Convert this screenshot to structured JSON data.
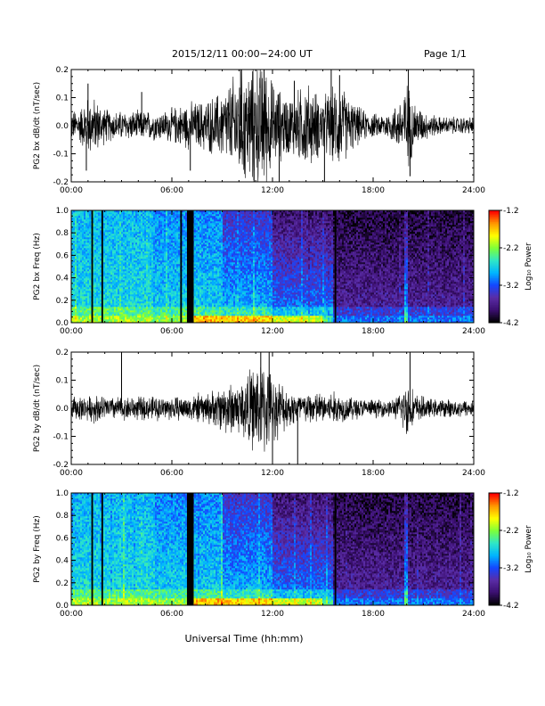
{
  "header": {
    "title": "2015/12/11   00:00−24:00 UT",
    "page": "Page 1/1"
  },
  "footer": {
    "xlabel": "Universal Time (hh:mm)"
  },
  "colors": {
    "background": "#ffffff",
    "trace": "#000000",
    "colormap": [
      "#000000",
      "#3b0f70",
      "#5a2da6",
      "#1446ff",
      "#00b4ff",
      "#2ee6c8",
      "#7cff3a",
      "#ffff00",
      "#ff9900",
      "#ff0000"
    ]
  },
  "chart_data": [
    {
      "type": "line",
      "ylabel": "PG2 bx dB/dt (nT/sec)",
      "xlim": [
        0,
        24
      ],
      "ylim": [
        -0.2,
        0.2
      ],
      "x_ticks": [
        "00:00",
        "06:00",
        "12:00",
        "18:00",
        "24:00"
      ],
      "y_ticks": [
        "-0.2",
        "-0.1",
        "0.0",
        "0.1",
        "0.2"
      ],
      "series": [
        {
          "x": [
            0,
            0.5,
            1,
            1.5,
            2,
            2.5,
            3,
            3.5,
            4,
            4.5,
            5,
            5.5,
            6,
            6.5,
            7,
            7.5,
            8,
            8.5,
            9,
            9.5,
            10,
            10.5,
            11,
            11.5,
            12,
            12.5,
            13,
            13.5,
            14,
            14.5,
            15,
            15.5,
            16,
            16.5,
            17,
            17.5,
            18,
            18.5,
            19,
            19.5,
            20,
            20.5,
            21,
            21.5,
            22,
            22.5,
            23,
            23.5,
            24
          ],
          "amplitude": [
            0.05,
            0.06,
            0.1,
            0.09,
            0.06,
            0.05,
            0.05,
            0.05,
            0.05,
            0.05,
            0.05,
            0.05,
            0.06,
            0.07,
            0.08,
            0.08,
            0.09,
            0.1,
            0.12,
            0.15,
            0.2,
            0.2,
            0.22,
            0.22,
            0.15,
            0.12,
            0.1,
            0.12,
            0.15,
            0.12,
            0.1,
            0.12,
            0.15,
            0.1,
            0.07,
            0.05,
            0.04,
            0.04,
            0.05,
            0.08,
            0.15,
            0.08,
            0.05,
            0.04,
            0.03,
            0.03,
            0.03,
            0.03,
            0.03
          ]
        }
      ],
      "spikes": [
        {
          "x": 0.9,
          "y": -0.16
        },
        {
          "x": 1.0,
          "y": 0.15
        },
        {
          "x": 4.2,
          "y": 0.12
        },
        {
          "x": 7.1,
          "y": -0.16
        },
        {
          "x": 10.1,
          "y": 0.22
        },
        {
          "x": 10.9,
          "y": -0.2
        },
        {
          "x": 11.5,
          "y": 0.22
        },
        {
          "x": 12.4,
          "y": -0.22
        },
        {
          "x": 13.3,
          "y": 0.16
        },
        {
          "x": 15.1,
          "y": -0.22
        },
        {
          "x": 15.5,
          "y": 0.22
        },
        {
          "x": 16.0,
          "y": 0.18
        },
        {
          "x": 20.1,
          "y": 0.22
        },
        {
          "x": 20.2,
          "y": -0.18
        }
      ]
    },
    {
      "type": "heatmap",
      "ylabel": "PG2 bx Freq (Hz)",
      "xlim": [
        0,
        24
      ],
      "ylim": [
        0,
        1.0
      ],
      "x_ticks": [
        "00:00",
        "06:00",
        "12:00",
        "18:00",
        "24:00"
      ],
      "y_ticks": [
        "0.0",
        "0.2",
        "0.4",
        "0.6",
        "0.8",
        "1.0"
      ],
      "colorbar": {
        "label": "Log₁₀ Power",
        "range": [
          -4.2,
          -1.2
        ],
        "ticks": [
          "-1.2",
          "-2.2",
          "-3.2",
          "-4.2"
        ]
      },
      "gaps_ut": [
        [
          1.2,
          1.3
        ],
        [
          1.8,
          1.9
        ],
        [
          6.5,
          6.6
        ],
        [
          6.9,
          7.3
        ],
        [
          15.7,
          15.8
        ]
      ],
      "quiet_onset_ut": 15.6,
      "bright_band_ut": 20.0
    },
    {
      "type": "line",
      "ylabel": "PG2 by dB/dt (nT/sec)",
      "xlim": [
        0,
        24
      ],
      "ylim": [
        -0.2,
        0.2
      ],
      "x_ticks": [
        "00:00",
        "06:00",
        "12:00",
        "18:00",
        "24:00"
      ],
      "y_ticks": [
        "-0.2",
        "-0.1",
        "0.0",
        "0.1",
        "0.2"
      ],
      "series": [
        {
          "x": [
            0,
            0.5,
            1,
            1.5,
            2,
            2.5,
            3,
            3.5,
            4,
            4.5,
            5,
            5.5,
            6,
            6.5,
            7,
            7.5,
            8,
            8.5,
            9,
            9.5,
            10,
            10.5,
            11,
            11.5,
            12,
            12.5,
            13,
            13.5,
            14,
            14.5,
            15,
            15.5,
            16,
            16.5,
            17,
            17.5,
            18,
            18.5,
            19,
            19.5,
            20,
            20.5,
            21,
            21.5,
            22,
            22.5,
            23,
            23.5,
            24
          ],
          "amplitude": [
            0.04,
            0.04,
            0.04,
            0.05,
            0.04,
            0.04,
            0.04,
            0.04,
            0.04,
            0.04,
            0.04,
            0.04,
            0.04,
            0.04,
            0.04,
            0.05,
            0.05,
            0.06,
            0.08,
            0.09,
            0.09,
            0.12,
            0.15,
            0.16,
            0.11,
            0.09,
            0.06,
            0.06,
            0.05,
            0.06,
            0.05,
            0.06,
            0.05,
            0.04,
            0.04,
            0.03,
            0.03,
            0.03,
            0.03,
            0.04,
            0.1,
            0.05,
            0.04,
            0.03,
            0.03,
            0.03,
            0.03,
            0.03,
            0.03
          ]
        }
      ],
      "spikes": [
        {
          "x": 3.0,
          "y": 0.2
        },
        {
          "x": 11.3,
          "y": 0.22
        },
        {
          "x": 11.8,
          "y": 0.2
        },
        {
          "x": 12.0,
          "y": -0.22
        },
        {
          "x": 13.5,
          "y": -0.22
        },
        {
          "x": 20.2,
          "y": 0.22
        }
      ]
    },
    {
      "type": "heatmap",
      "ylabel": "PG2 by Freq (Hz)",
      "xlim": [
        0,
        24
      ],
      "ylim": [
        0,
        1.0
      ],
      "x_ticks": [
        "00:00",
        "06:00",
        "12:00",
        "18:00",
        "24:00"
      ],
      "y_ticks": [
        "0.0",
        "0.2",
        "0.4",
        "0.6",
        "0.8",
        "1.0"
      ],
      "colorbar": {
        "label": "Log₁₀ Power",
        "range": [
          -4.2,
          -1.2
        ],
        "ticks": [
          "-1.2",
          "-2.2",
          "-3.2",
          "-4.2"
        ]
      },
      "gaps_ut": [
        [
          1.2,
          1.3
        ],
        [
          1.8,
          1.9
        ],
        [
          6.9,
          7.3
        ],
        [
          15.7,
          15.8
        ]
      ],
      "quiet_onset_ut": 15.6,
      "bright_band_ut": 20.0
    }
  ]
}
